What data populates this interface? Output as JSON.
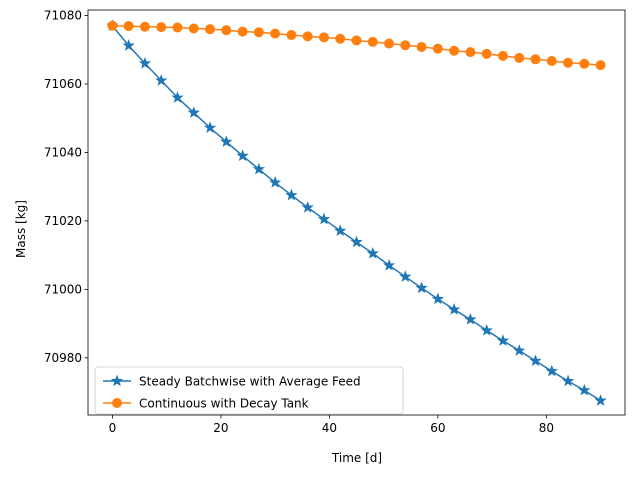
{
  "chart_data": {
    "type": "line",
    "title": "",
    "xlabel": "Time [d]",
    "ylabel": "Mass [kg]",
    "xlim": [
      -4.5,
      94.5
    ],
    "ylim": [
      70963.3,
      71081.6
    ],
    "xticks": [
      0,
      20,
      40,
      60,
      80
    ],
    "xtick_labels": [
      "0",
      "20",
      "40",
      "60",
      "80"
    ],
    "yticks": [
      70980,
      71000,
      71020,
      71040,
      71060,
      71080
    ],
    "ytick_labels": [
      "70980",
      "71000",
      "71020",
      "71040",
      "71060",
      "71080"
    ],
    "grid": false,
    "legend_position": "lower-left",
    "x": [
      0,
      3,
      6,
      9,
      12,
      15,
      18,
      21,
      24,
      27,
      30,
      33,
      36,
      39,
      42,
      45,
      48,
      51,
      54,
      57,
      60,
      63,
      66,
      69,
      72,
      75,
      78,
      81,
      84,
      87,
      90
    ],
    "series": [
      {
        "name": "Steady Batchwise with Average Feed",
        "color": "#1f77b4",
        "marker": "star",
        "values": [
          71077.0,
          71071.2,
          71066.0,
          71061.0,
          71056.0,
          71051.6,
          71047.2,
          71043.1,
          71039.0,
          71035.1,
          71031.2,
          71027.5,
          71023.9,
          71020.5,
          71017.1,
          71013.8,
          71010.5,
          71007.0,
          71003.7,
          71000.4,
          70997.2,
          70994.1,
          70991.2,
          70988.0,
          70985.0,
          70982.1,
          70979.1,
          70976.1,
          70973.2,
          70970.5,
          70967.5
        ]
      },
      {
        "name": "Continuous with Decay Tank",
        "color": "#ff7f0e",
        "marker": "circle",
        "values": [
          71077.0,
          71076.9,
          71076.7,
          71076.6,
          71076.5,
          71076.2,
          71076.0,
          71075.7,
          71075.3,
          71075.1,
          71074.7,
          71074.3,
          71073.9,
          71073.6,
          71073.2,
          71072.7,
          71072.3,
          71071.8,
          71071.3,
          71070.8,
          71070.3,
          71069.7,
          71069.3,
          71068.8,
          71068.2,
          71067.6,
          71067.2,
          71066.7,
          71066.2,
          71065.9,
          71065.5
        ]
      }
    ]
  }
}
